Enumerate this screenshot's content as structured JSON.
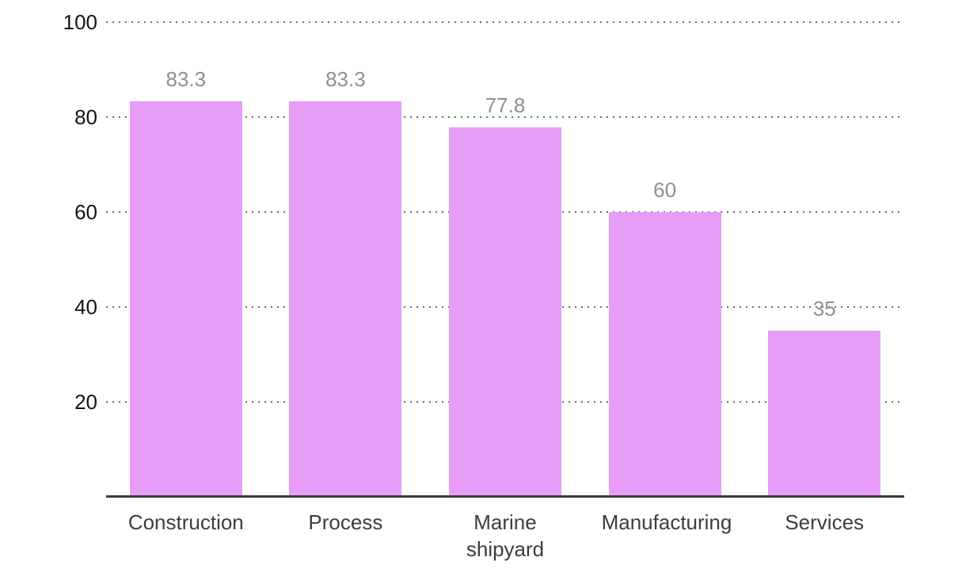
{
  "chart_data": {
    "type": "bar",
    "title": "",
    "xlabel": "",
    "ylabel": "",
    "categories": [
      "Construction",
      "Process",
      "Marine shipyard",
      "Manufacturing",
      "Services"
    ],
    "values": [
      83.3,
      83.3,
      77.8,
      60,
      35
    ],
    "value_labels": [
      "83.3",
      "83.3",
      "77.8",
      "60",
      "35"
    ],
    "y_ticks": [
      100,
      80,
      60,
      40,
      20
    ],
    "y_tick_labels": [
      "100",
      "80",
      "60",
      "40",
      "20"
    ],
    "ylim": [
      0,
      100
    ],
    "grid": "horizontal-dotted",
    "legend": "none",
    "colors": {
      "bar_fill": "#e79df8",
      "value_label": "#8f8f8f",
      "y_tick_label": "#151515",
      "category_label": "#3d3d3d",
      "gridline": "#6b6b6b",
      "axis_line": "#3a3a3a",
      "background": "#ffffff"
    }
  }
}
